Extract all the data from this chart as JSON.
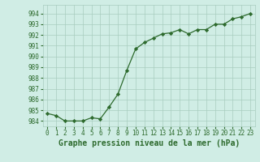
{
  "x": [
    0,
    1,
    2,
    3,
    4,
    5,
    6,
    7,
    8,
    9,
    10,
    11,
    12,
    13,
    14,
    15,
    16,
    17,
    18,
    19,
    20,
    21,
    22,
    23
  ],
  "y": [
    984.7,
    984.5,
    984.0,
    984.0,
    984.0,
    984.3,
    984.2,
    985.3,
    986.5,
    988.7,
    990.7,
    991.3,
    991.7,
    992.1,
    992.2,
    992.5,
    992.1,
    992.5,
    992.5,
    993.0,
    993.0,
    993.5,
    993.7,
    994.0
  ],
  "line_color": "#2d6a2d",
  "marker": "D",
  "marker_size": 2.2,
  "bg_color": "#d0ede5",
  "grid_color": "#a8ccbf",
  "xlabel": "Graphe pression niveau de la mer (hPa)",
  "xlabel_color": "#2d6a2d",
  "tick_color": "#2d6a2d",
  "ylim": [
    983.5,
    994.8
  ],
  "yticks": [
    984,
    985,
    986,
    987,
    988,
    989,
    990,
    991,
    992,
    993,
    994
  ],
  "xticks": [
    0,
    1,
    2,
    3,
    4,
    5,
    6,
    7,
    8,
    9,
    10,
    11,
    12,
    13,
    14,
    15,
    16,
    17,
    18,
    19,
    20,
    21,
    22,
    23
  ],
  "tick_fontsize": 5.5,
  "label_fontsize": 7.0
}
